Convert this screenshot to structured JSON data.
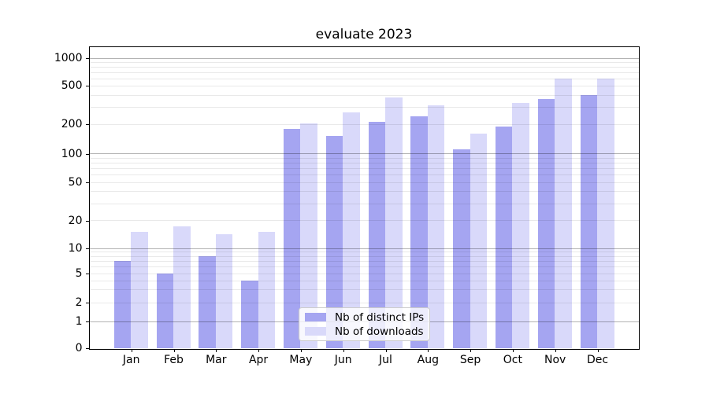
{
  "chart_data": {
    "type": "bar",
    "title": "evaluate 2023",
    "categories": [
      "Jan",
      "Feb",
      "Mar",
      "Apr",
      "May",
      "Jun",
      "Jul",
      "Aug",
      "Sep",
      "Oct",
      "Nov",
      "Dec"
    ],
    "x_year_label": "2023",
    "series": [
      {
        "name": "Nb of distinct IPs",
        "color": "#a5a5f1",
        "values": [
          7,
          5,
          8,
          4,
          180,
          150,
          210,
          240,
          110,
          190,
          360,
          400
        ]
      },
      {
        "name": "Nb of downloads",
        "color": "#d9d9fa",
        "values": [
          15,
          17,
          14,
          15,
          205,
          265,
          380,
          310,
          160,
          330,
          600,
          590
        ]
      }
    ],
    "yscale": "symlog",
    "yticks": [
      0,
      1,
      2,
      5,
      10,
      20,
      50,
      100,
      200,
      500,
      1000
    ],
    "ylim": [
      0,
      1340
    ],
    "grid": "both",
    "legend": {
      "items": [
        "Nb of distinct IPs",
        "Nb of downloads"
      ],
      "position": "lower center"
    }
  }
}
